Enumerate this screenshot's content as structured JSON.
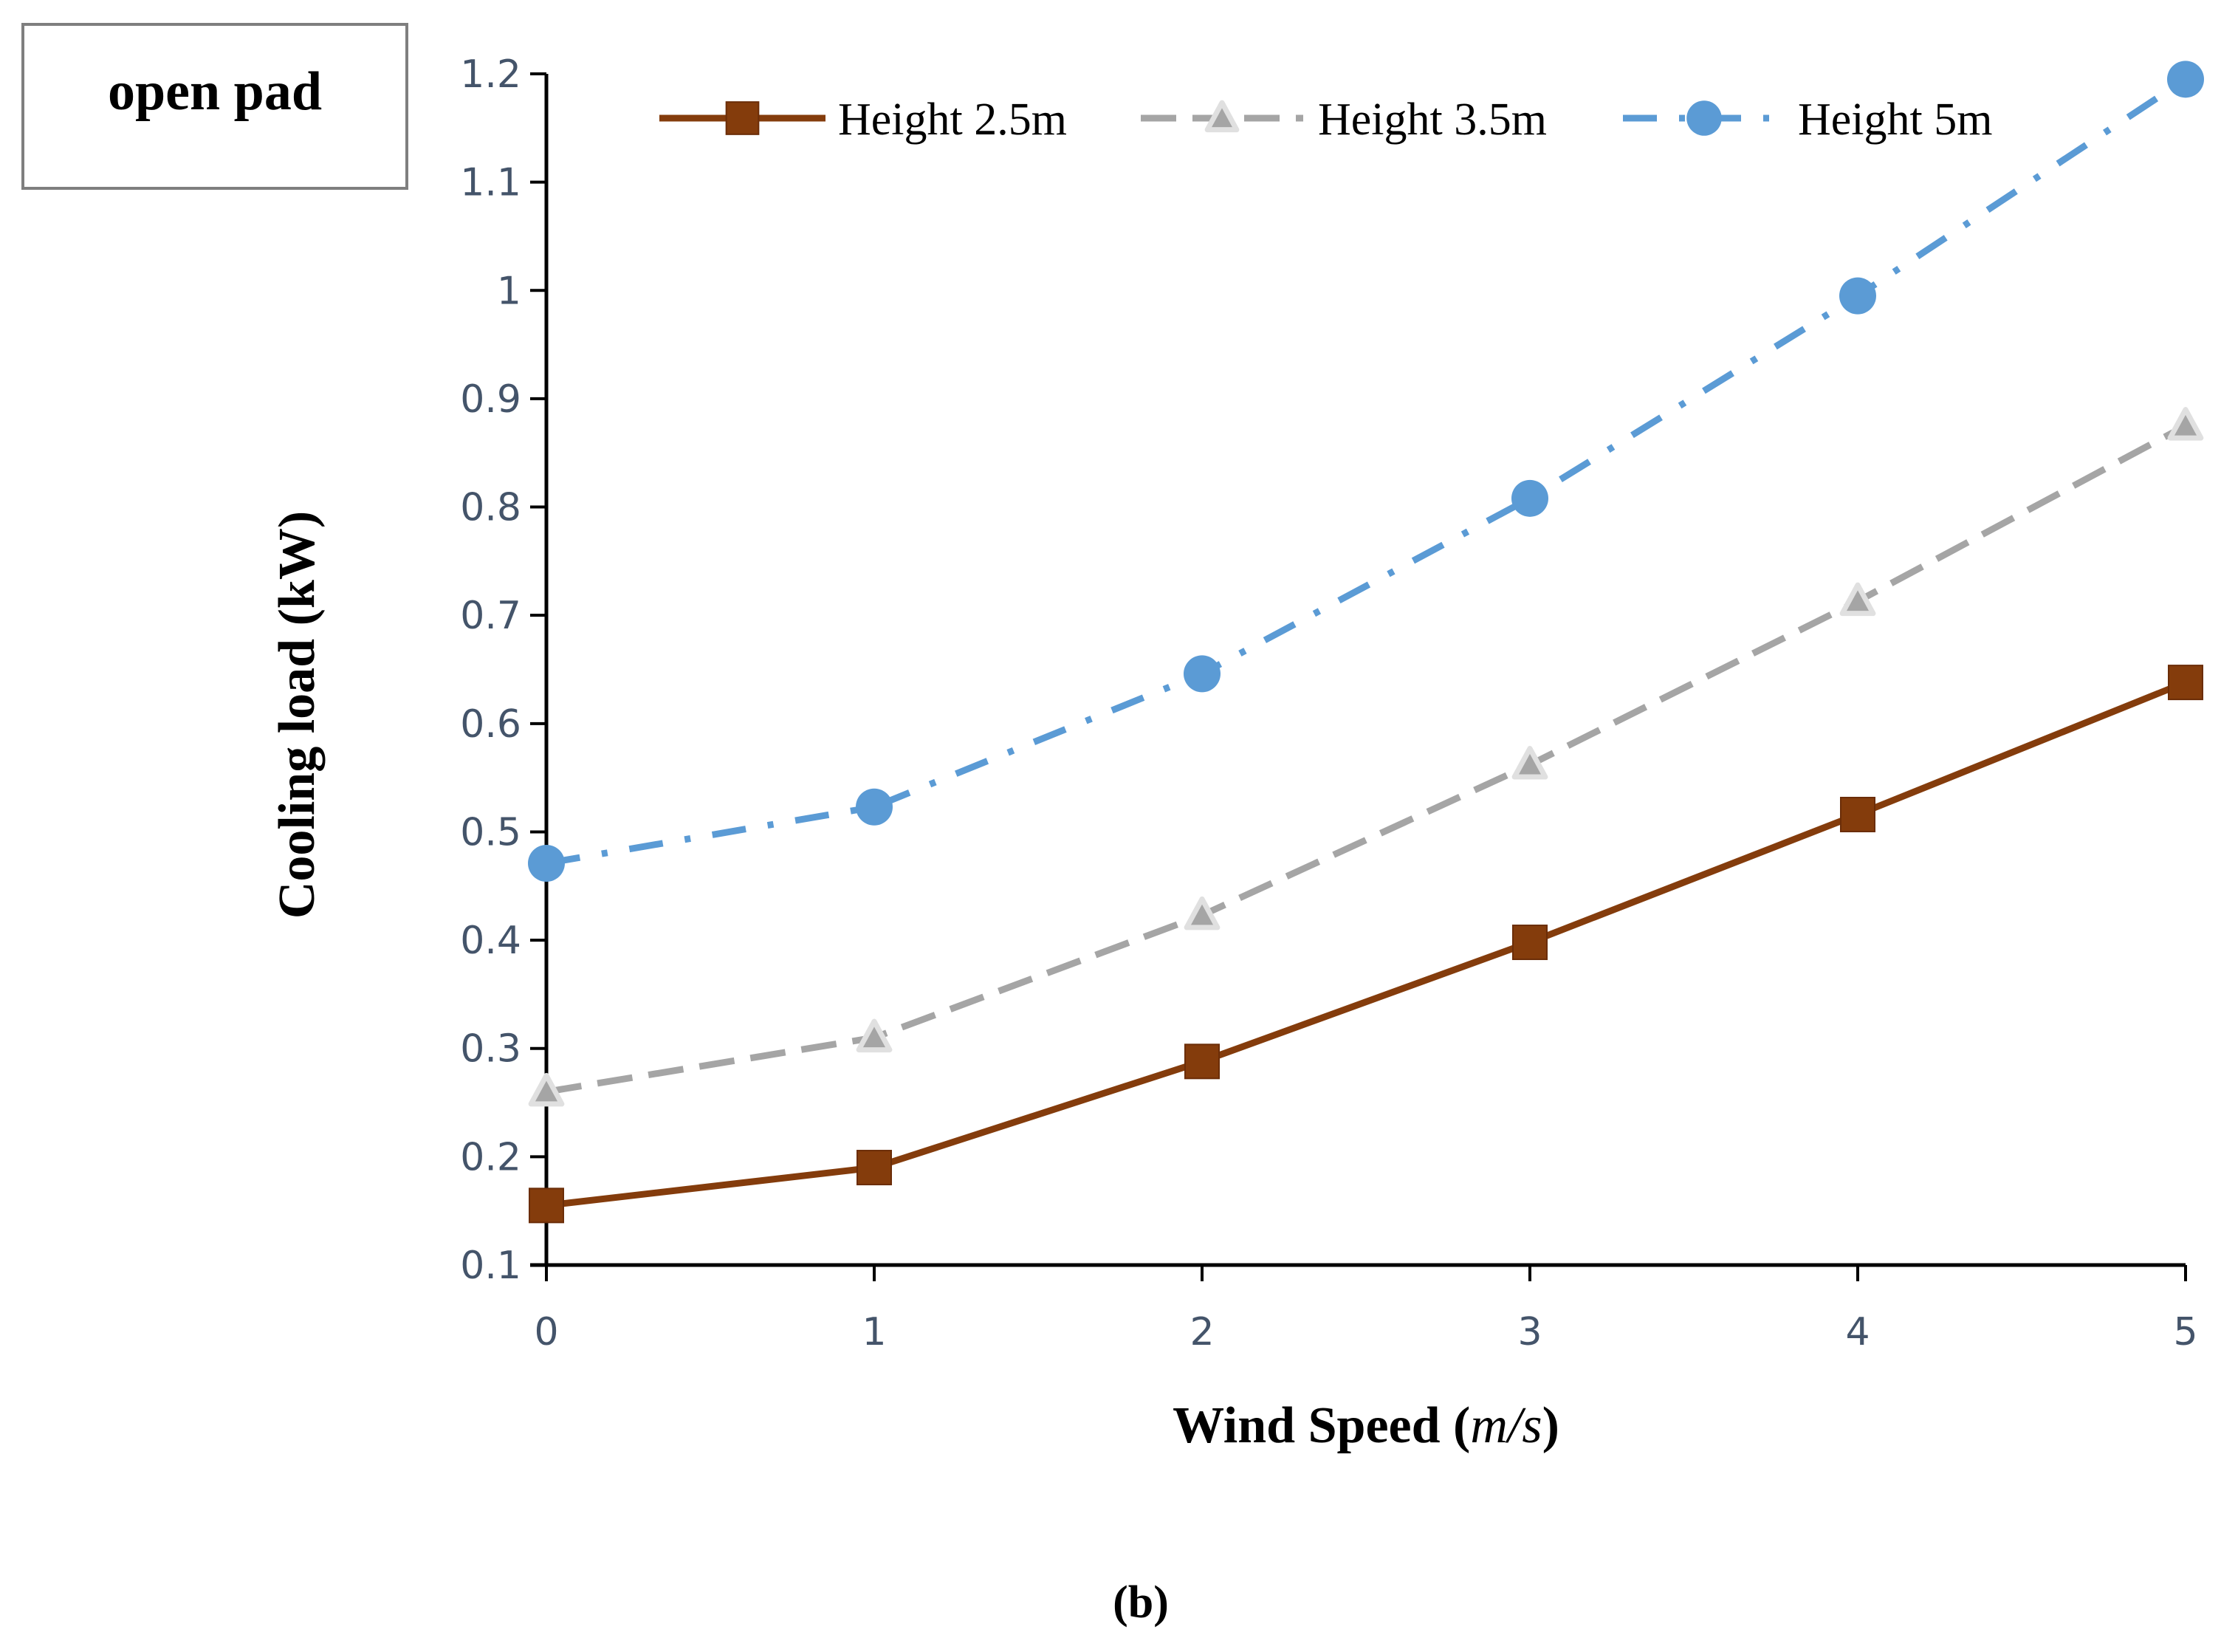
{
  "box_label": "open pad",
  "caption": "(b)",
  "chart_data": {
    "type": "line",
    "title": "",
    "xlabel_prefix": "Wind Speed (",
    "xlabel_unit": "m/s",
    "xlabel_suffix": ")",
    "ylabel": "Cooling  load (kW)",
    "x": [
      0,
      1,
      2,
      3,
      4,
      5
    ],
    "xlim": [
      0,
      5
    ],
    "ylim": [
      0.1,
      1.2
    ],
    "x_ticks": [
      "0",
      "1",
      "2",
      "3",
      "4",
      "5"
    ],
    "y_ticks": [
      "0.1",
      "0.2",
      "0.3",
      "0.4",
      "0.5",
      "0.6",
      "0.7",
      "0.8",
      "0.9",
      "1",
      "1.1",
      "1.2"
    ],
    "grid": false,
    "legend_position": "top",
    "series": [
      {
        "name": "Height 2.5m",
        "values": [
          0.155,
          0.19,
          0.288,
          0.398,
          0.516,
          0.638
        ],
        "color": "#843c0c",
        "marker": "square",
        "line_style": "solid"
      },
      {
        "name": "Height 3.5m",
        "values": [
          0.26,
          0.31,
          0.423,
          0.562,
          0.713,
          0.875
        ],
        "color": "#a5a5a5",
        "marker": "triangle",
        "line_style": "dashed"
      },
      {
        "name": "Height 5m",
        "values": [
          0.471,
          0.523,
          0.646,
          0.808,
          0.995,
          1.195
        ],
        "color": "#5b9bd5",
        "marker": "circle",
        "line_style": "dash-dot"
      }
    ]
  }
}
